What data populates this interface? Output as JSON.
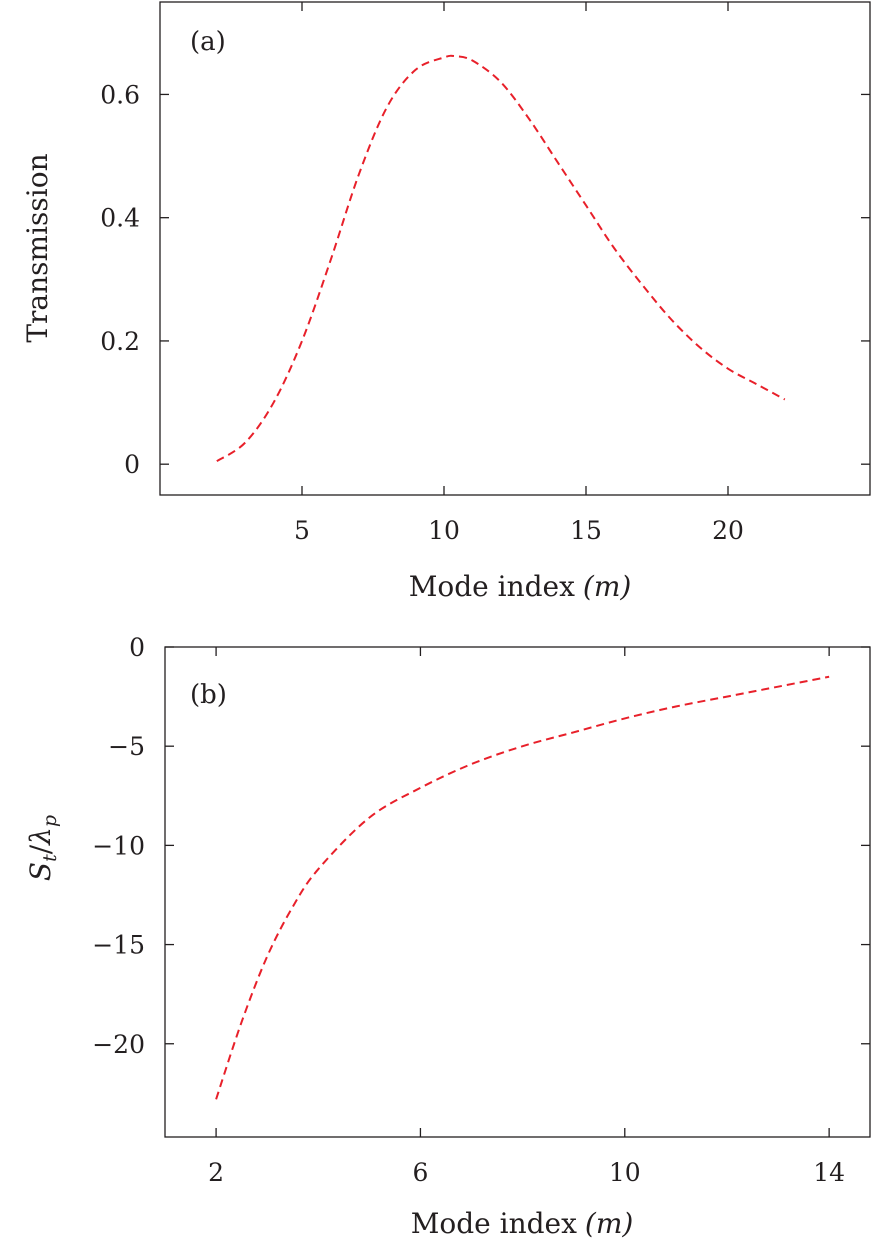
{
  "chart_data": [
    {
      "type": "line",
      "panel_label": "(a)",
      "xlabel_text": "Mode index",
      "xlabel_symbol": "(m)",
      "ylabel": "Transmission",
      "xlim": [
        0,
        25
      ],
      "ylim": [
        -0.05,
        0.75
      ],
      "xticks": [
        5,
        10,
        15,
        20
      ],
      "xtick_labels": [
        "5",
        "10",
        "15",
        "20"
      ],
      "yticks": [
        0,
        0.2,
        0.4,
        0.6
      ],
      "ytick_labels": [
        "0",
        "0.2",
        "0.4",
        "0.6"
      ],
      "grid": false,
      "series": [
        {
          "name": "Transmission",
          "color": "#e8202a",
          "style": "dashed",
          "x": [
            2,
            3,
            4,
            5,
            6,
            7,
            8,
            9,
            10,
            10.4,
            11,
            12,
            13,
            14,
            15,
            16,
            17,
            18,
            19,
            20,
            21,
            22
          ],
          "values": [
            0.005,
            0.035,
            0.1,
            0.2,
            0.33,
            0.47,
            0.58,
            0.64,
            0.66,
            0.662,
            0.655,
            0.62,
            0.56,
            0.49,
            0.42,
            0.35,
            0.29,
            0.235,
            0.19,
            0.155,
            0.13,
            0.105
          ]
        }
      ]
    },
    {
      "type": "line",
      "panel_label": "(b)",
      "xlabel_text": "Mode index",
      "xlabel_symbol": "(m)",
      "ylabel_S": "S",
      "ylabel_S_sub": "t",
      "ylabel_lambda": "λ",
      "ylabel_lambda_sub": "p",
      "xlim": [
        1,
        14.8
      ],
      "ylim": [
        -24.7,
        0
      ],
      "xticks": [
        2,
        6,
        10,
        14
      ],
      "xtick_labels": [
        "2",
        "6",
        "10",
        "14"
      ],
      "yticks": [
        0,
        -5,
        -10,
        -15,
        -20
      ],
      "ytick_labels": [
        "0",
        "−5",
        "−10",
        "−15",
        "−20"
      ],
      "grid": false,
      "series": [
        {
          "name": "St/λp",
          "color": "#e8202a",
          "style": "dashed",
          "x": [
            2,
            2.5,
            3,
            3.5,
            4,
            5,
            6,
            7,
            8,
            9,
            10,
            11,
            12,
            13,
            14
          ],
          "values": [
            -22.8,
            -18.9,
            -15.6,
            -13.1,
            -11.2,
            -8.6,
            -7.1,
            -5.9,
            -5.0,
            -4.3,
            -3.6,
            -3.0,
            -2.5,
            -2.0,
            -1.5
          ]
        }
      ]
    }
  ]
}
